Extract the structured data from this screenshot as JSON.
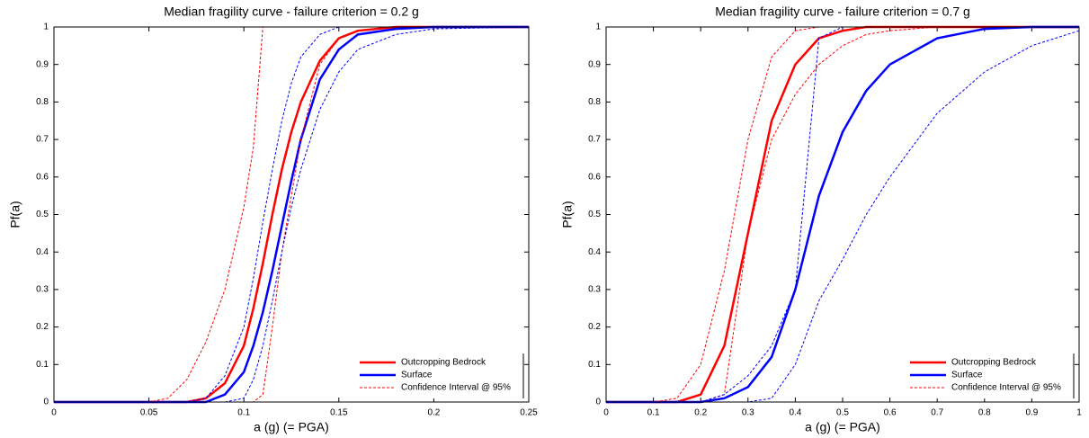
{
  "chart_data": [
    {
      "type": "line",
      "title": "Median fragility curve - failure criterion = 0.2 g",
      "x_label": "a (g) (= PGA)",
      "y_label": "Pf(a)",
      "x": [
        0,
        0.05,
        0.06,
        0.07,
        0.08,
        0.09,
        0.1,
        0.105,
        0.11,
        0.115,
        0.12,
        0.125,
        0.13,
        0.14,
        0.15,
        0.16,
        0.18,
        0.2,
        0.25
      ],
      "xlim": [
        0,
        0.25
      ],
      "xticks": [
        0,
        0.05,
        0.1,
        0.15,
        0.2,
        0.25
      ],
      "ylim": [
        0,
        1
      ],
      "yticks": [
        0,
        0.1,
        0.2,
        0.3,
        0.4,
        0.5,
        0.6,
        0.7,
        0.8,
        0.9,
        1
      ],
      "legend": "lower right",
      "series": [
        {
          "name": "Outcropping Bedrock",
          "color": "#ff0000",
          "linestyle": "solid",
          "values": [
            0,
            0,
            0,
            0,
            0.01,
            0.05,
            0.15,
            0.25,
            0.37,
            0.5,
            0.62,
            0.72,
            0.8,
            0.91,
            0.97,
            0.99,
            1,
            1,
            1
          ]
        },
        {
          "name": "Surface",
          "color": "#0000ff",
          "linestyle": "solid",
          "values": [
            0,
            0,
            0,
            0,
            0,
            0.02,
            0.08,
            0.15,
            0.24,
            0.35,
            0.47,
            0.59,
            0.7,
            0.86,
            0.94,
            0.98,
            0.995,
            1,
            1
          ]
        },
        {
          "name": "Confidence Interval @ 95%",
          "color": "#ff0000",
          "linestyle": "dashed",
          "values": [
            0,
            0,
            0.01,
            0.06,
            0.16,
            0.3,
            0.52,
            0.68,
            1,
            1,
            1,
            1,
            1,
            1,
            1,
            1,
            1,
            1,
            1
          ]
        },
        {
          "color": "#ff0000",
          "linestyle": "dashed",
          "values": [
            0,
            0,
            0,
            0,
            0,
            0,
            0,
            0,
            0.02,
            0.2,
            0.4,
            0.55,
            0.7,
            0.9,
            0.97,
            0.99,
            1,
            1,
            1
          ]
        },
        {
          "color": "#0000ff",
          "linestyle": "dashed",
          "values": [
            0,
            0,
            0,
            0,
            0.01,
            0.07,
            0.2,
            0.33,
            0.48,
            0.62,
            0.75,
            0.85,
            0.92,
            0.98,
            1,
            1,
            1,
            1,
            1
          ]
        },
        {
          "color": "#0000ff",
          "linestyle": "dashed",
          "values": [
            0,
            0,
            0,
            0,
            0,
            0,
            0.01,
            0.06,
            0.15,
            0.27,
            0.4,
            0.52,
            0.62,
            0.78,
            0.88,
            0.94,
            0.98,
            0.995,
            1
          ]
        }
      ]
    },
    {
      "type": "line",
      "title": "Median fragility curve - failure criterion = 0.7 g",
      "x_label": "a (g) (= PGA)",
      "y_label": "Pf(a)",
      "x": [
        0,
        0.1,
        0.15,
        0.2,
        0.25,
        0.3,
        0.35,
        0.4,
        0.45,
        0.5,
        0.55,
        0.6,
        0.7,
        0.8,
        0.9,
        1
      ],
      "xlim": [
        0,
        1
      ],
      "xticks": [
        0,
        0.1,
        0.2,
        0.3,
        0.4,
        0.5,
        0.6,
        0.7,
        0.8,
        0.9,
        1
      ],
      "ylim": [
        0,
        1
      ],
      "yticks": [
        0,
        0.1,
        0.2,
        0.3,
        0.4,
        0.5,
        0.6,
        0.7,
        0.8,
        0.9,
        1
      ],
      "legend": "lower right",
      "series": [
        {
          "name": "Outcropping Bedrock",
          "color": "#ff0000",
          "linestyle": "solid",
          "values": [
            0,
            0,
            0,
            0.02,
            0.15,
            0.45,
            0.75,
            0.9,
            0.97,
            0.99,
            1,
            1,
            1,
            1,
            1,
            1
          ]
        },
        {
          "name": "Surface",
          "color": "#0000ff",
          "linestyle": "solid",
          "values": [
            0,
            0,
            0,
            0,
            0.01,
            0.04,
            0.12,
            0.3,
            0.55,
            0.72,
            0.83,
            0.9,
            0.97,
            0.995,
            1,
            1
          ]
        },
        {
          "name": "Confidence Interval @ 95%",
          "color": "#ff0000",
          "linestyle": "dashed",
          "values": [
            0,
            0,
            0.01,
            0.1,
            0.35,
            0.7,
            0.92,
            0.99,
            1,
            1,
            1,
            1,
            1,
            1,
            1,
            1
          ]
        },
        {
          "color": "#ff0000",
          "linestyle": "dashed",
          "values": [
            0,
            0,
            0,
            0,
            0.02,
            0.45,
            0.7,
            0.82,
            0.9,
            0.95,
            0.98,
            0.99,
            1,
            1,
            1,
            1
          ]
        },
        {
          "color": "#0000ff",
          "linestyle": "dashed",
          "values": [
            0,
            0,
            0,
            0,
            0.02,
            0.07,
            0.15,
            0.3,
            0.97,
            1,
            1,
            1,
            1,
            1,
            1,
            1
          ]
        },
        {
          "color": "#0000ff",
          "linestyle": "dashed",
          "values": [
            0,
            0,
            0,
            0,
            0,
            0,
            0.01,
            0.1,
            0.27,
            0.38,
            0.5,
            0.6,
            0.77,
            0.88,
            0.95,
            0.99
          ]
        }
      ]
    }
  ]
}
